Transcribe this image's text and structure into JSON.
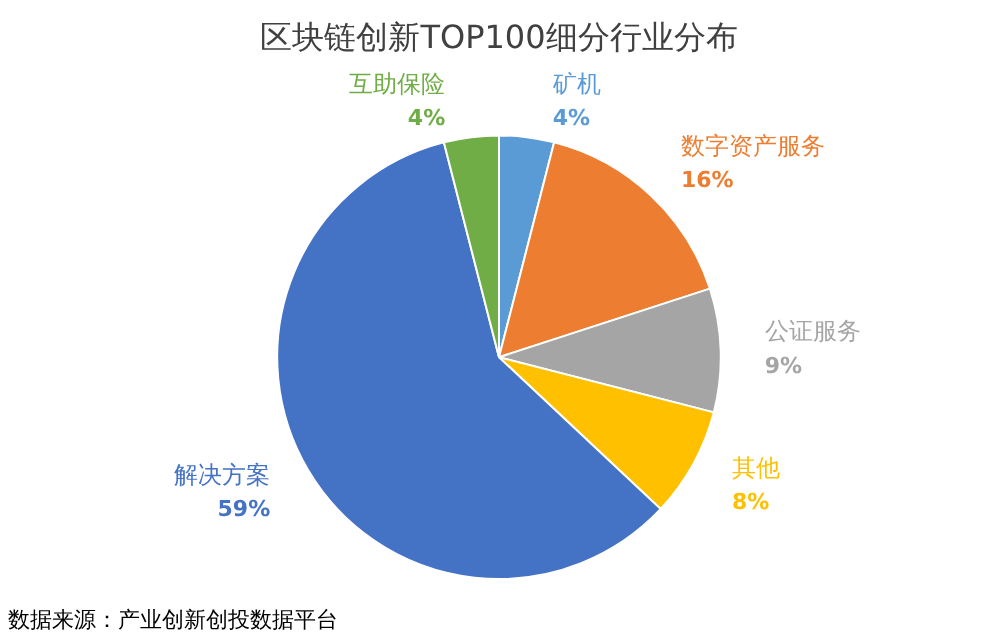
{
  "chart_data": {
    "type": "pie",
    "title": "区块链创新TOP100细分行业分布",
    "categories": [
      "矿机",
      "数字资产服务",
      "公证服务",
      "其他",
      "解决方案",
      "互助保险"
    ],
    "values": [
      4,
      16,
      9,
      8,
      59,
      4
    ],
    "value_labels": [
      "4%",
      "16%",
      "9%",
      "8%",
      "59%",
      "4%"
    ],
    "colors": [
      "#5b9bd5",
      "#ed7d31",
      "#a5a5a5",
      "#ffc000",
      "#4472c4",
      "#70ad47"
    ],
    "legend": false,
    "annotations": [
      "数据来源：产业创新创投数据平台"
    ]
  }
}
